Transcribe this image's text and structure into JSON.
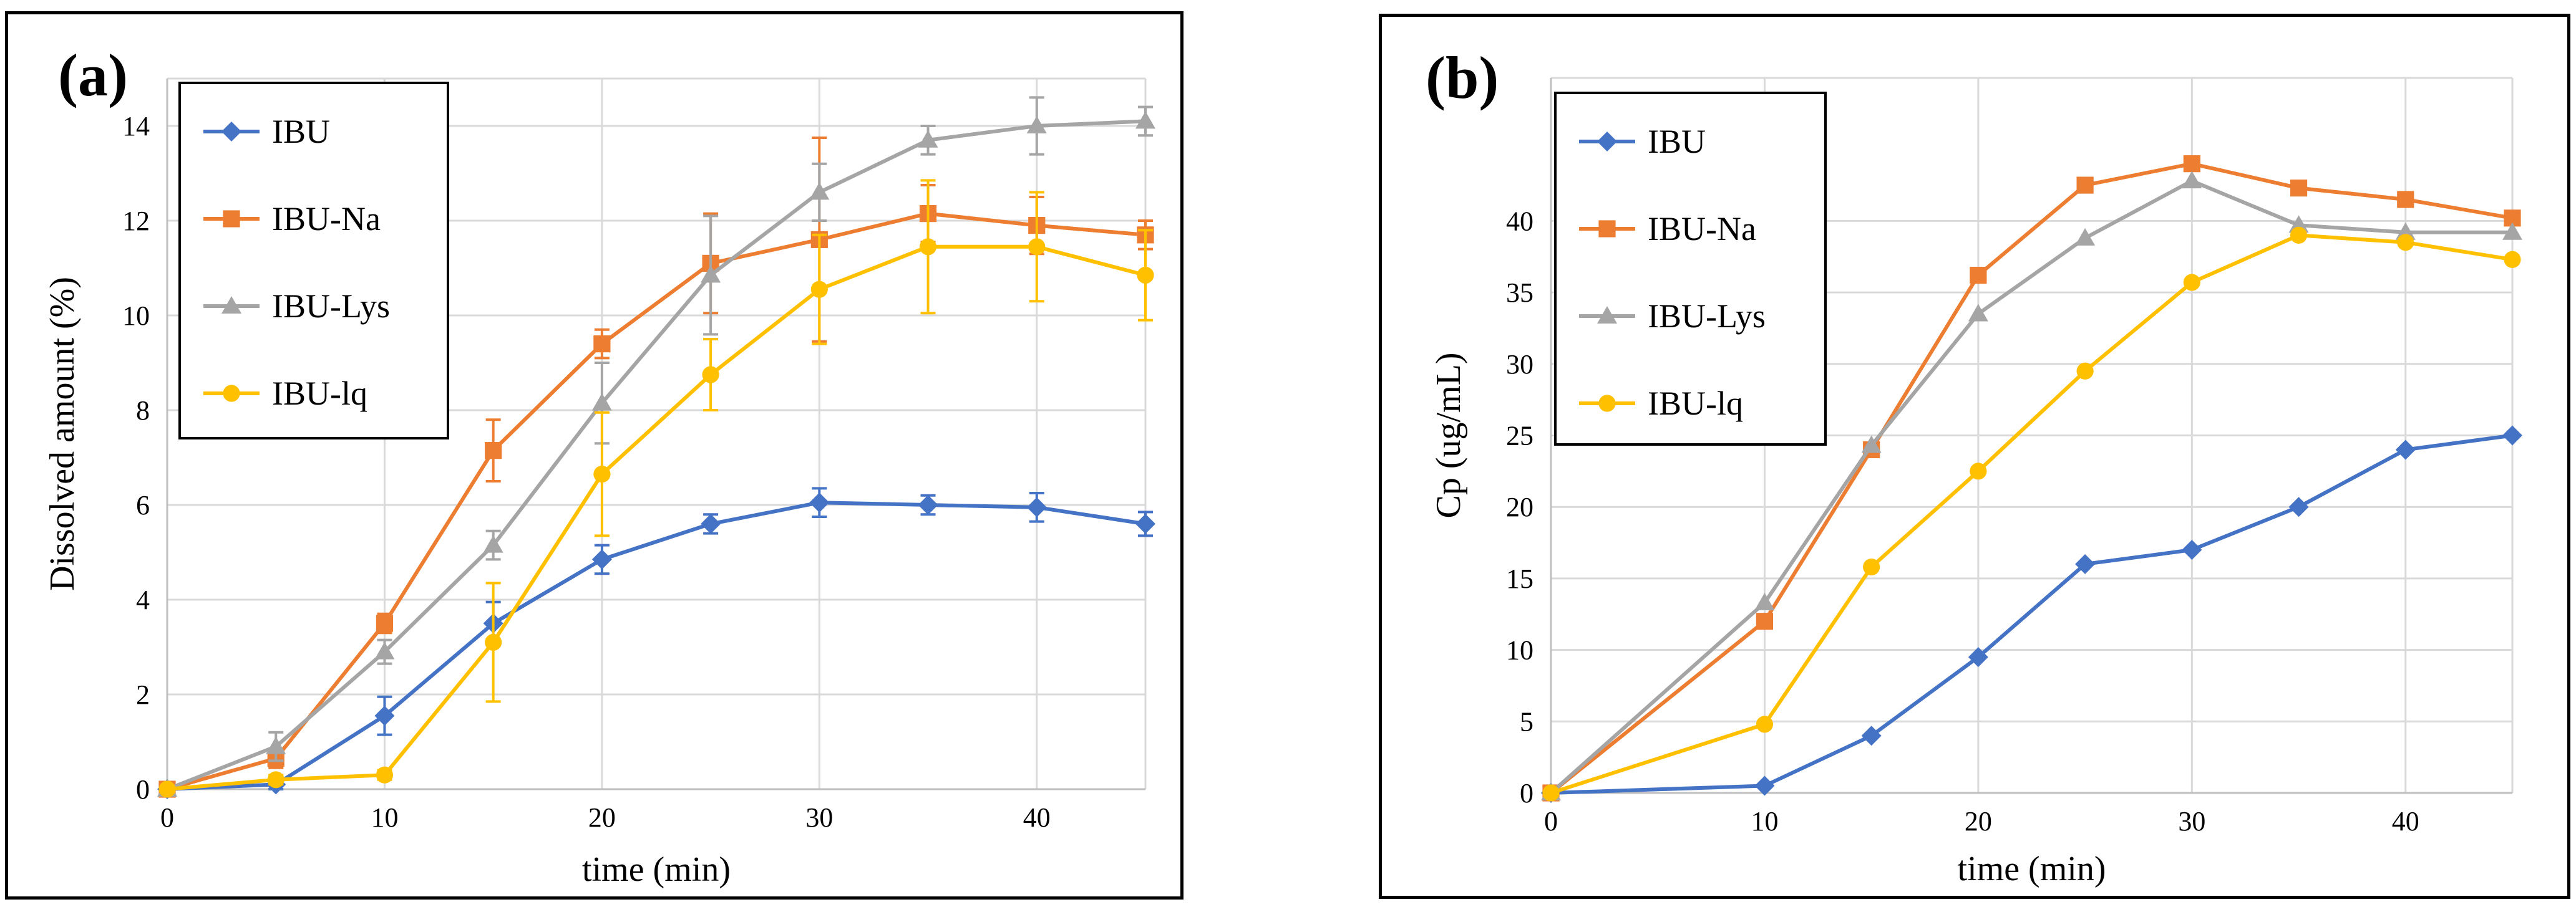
{
  "colors": {
    "IBU": "#4472C4",
    "IBU-Na": "#ED7D31",
    "IBU-Lys": "#A5A5A5",
    "IBU-lq": "#FFC000"
  },
  "chart_data": [
    {
      "type": "line",
      "panel_label": "(a)",
      "title": "",
      "xlabel": "time (min)",
      "ylabel": "Dissolved amount (%)",
      "xlim": [
        0,
        45
      ],
      "ylim": [
        0,
        15
      ],
      "xticks": [
        0,
        10,
        20,
        30,
        40
      ],
      "yticks": [
        0,
        2,
        4,
        6,
        8,
        10,
        12,
        14
      ],
      "grid": true,
      "legend_position": "top-left",
      "x": [
        0,
        5,
        10,
        15,
        20,
        25,
        30,
        35,
        40,
        45
      ],
      "series": [
        {
          "name": "IBU",
          "marker": "diamond",
          "values": [
            0,
            0.1,
            1.55,
            3.5,
            4.85,
            5.6,
            6.05,
            6.0,
            5.95,
            5.6
          ],
          "errors": [
            0,
            0.1,
            0.4,
            0.45,
            0.3,
            0.2,
            0.3,
            0.2,
            0.3,
            0.25
          ]
        },
        {
          "name": "IBU-Na",
          "marker": "square",
          "values": [
            0,
            0.65,
            3.5,
            7.15,
            9.4,
            11.1,
            11.6,
            12.15,
            11.9,
            11.7
          ],
          "errors": [
            0,
            0.2,
            0.2,
            0.65,
            0.3,
            1.05,
            2.15,
            0.6,
            0.6,
            0.3
          ]
        },
        {
          "name": "IBU-Lys",
          "marker": "triangle",
          "values": [
            0,
            0.9,
            2.9,
            5.15,
            8.15,
            10.85,
            12.6,
            13.7,
            14.0,
            14.1
          ],
          "errors": [
            0,
            0.3,
            0.25,
            0.3,
            0.85,
            1.25,
            0.6,
            0.3,
            0.6,
            0.3
          ]
        },
        {
          "name": "IBU-lq",
          "marker": "circle",
          "values": [
            0,
            0.2,
            0.3,
            3.1,
            6.65,
            8.75,
            10.55,
            11.45,
            11.45,
            10.85
          ],
          "errors": [
            0,
            0.1,
            0.1,
            1.25,
            1.3,
            0.75,
            1.15,
            1.4,
            1.15,
            0.95
          ]
        }
      ]
    },
    {
      "type": "line",
      "panel_label": "(b)",
      "title": "",
      "xlabel": "time (min)",
      "ylabel": "Cp (ug/mL)",
      "xlim": [
        0,
        45
      ],
      "ylim": [
        0,
        50
      ],
      "xticks": [
        0,
        10,
        20,
        30,
        40
      ],
      "yticks": [
        0,
        5,
        10,
        15,
        20,
        25,
        30,
        35,
        40
      ],
      "grid": true,
      "legend_position": "top-left",
      "x": [
        0,
        10,
        15,
        20,
        25,
        30,
        35,
        40,
        45
      ],
      "series": [
        {
          "name": "IBU",
          "marker": "diamond",
          "values": [
            0,
            0.5,
            4.0,
            9.5,
            16.0,
            17.0,
            20.0,
            24.0,
            25.0
          ]
        },
        {
          "name": "IBU-Na",
          "marker": "square",
          "values": [
            0,
            12.0,
            24.0,
            36.2,
            42.5,
            44.0,
            42.3,
            41.5,
            40.2
          ]
        },
        {
          "name": "IBU-Lys",
          "marker": "triangle",
          "values": [
            0,
            13.3,
            24.3,
            33.5,
            38.8,
            42.8,
            39.7,
            39.2,
            39.2
          ]
        },
        {
          "name": "IBU-lq",
          "marker": "circle",
          "values": [
            0,
            4.8,
            15.8,
            22.5,
            29.5,
            35.7,
            39.0,
            38.5,
            37.3
          ]
        }
      ]
    }
  ]
}
